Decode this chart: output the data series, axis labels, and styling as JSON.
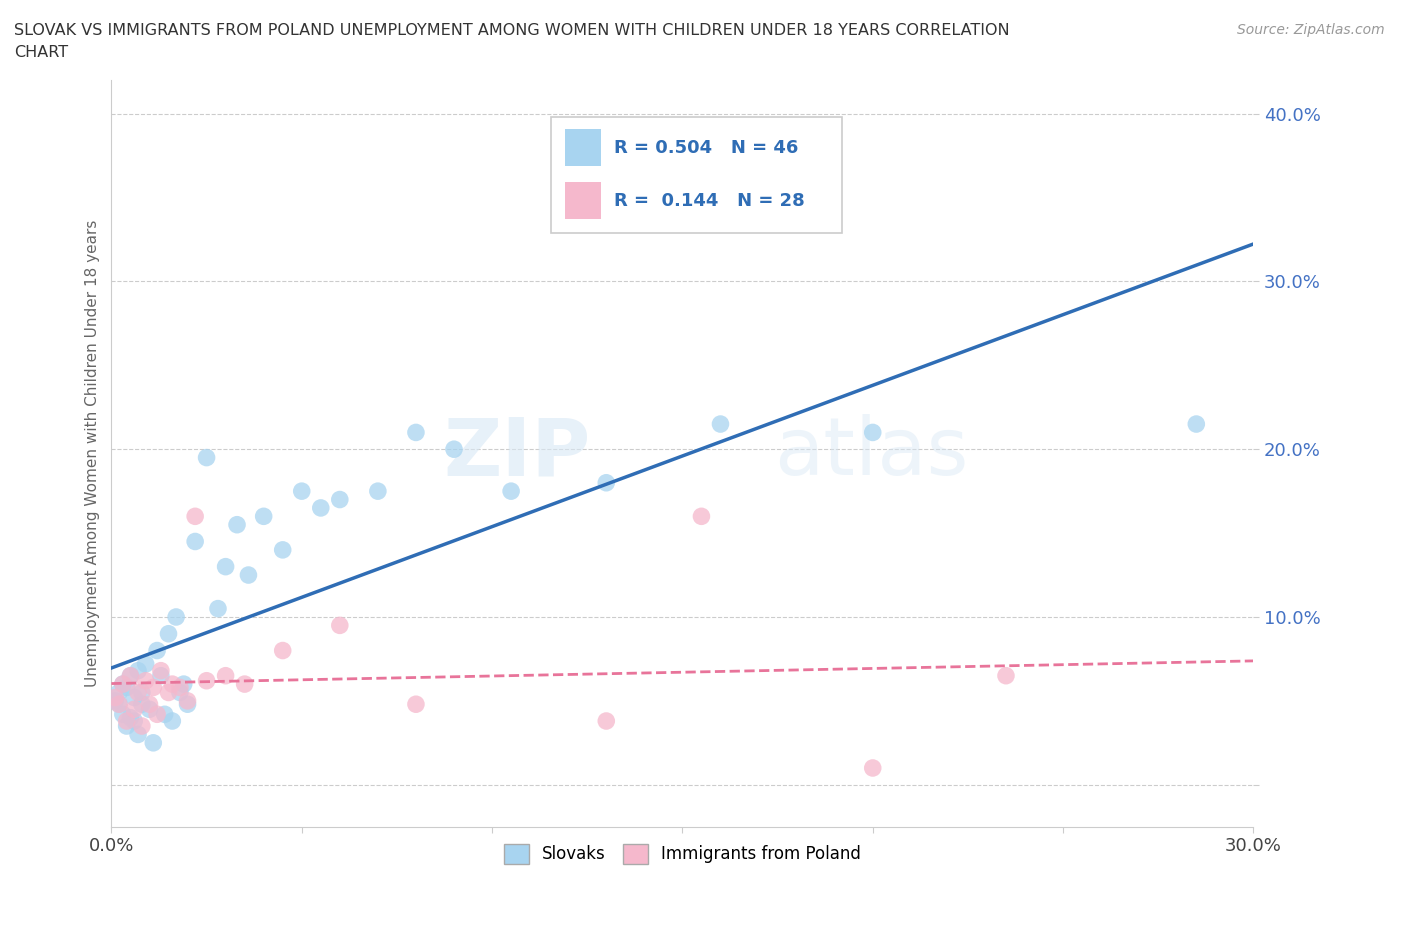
{
  "title_line1": "SLOVAK VS IMMIGRANTS FROM POLAND UNEMPLOYMENT AMONG WOMEN WITH CHILDREN UNDER 18 YEARS CORRELATION",
  "title_line2": "CHART",
  "source_text": "Source: ZipAtlas.com",
  "ylabel": "Unemployment Among Women with Children Under 18 years",
  "xlim": [
    0.0,
    0.3
  ],
  "ylim": [
    -0.025,
    0.42
  ],
  "xticks": [
    0.0,
    0.05,
    0.1,
    0.15,
    0.2,
    0.25,
    0.3
  ],
  "yticks": [
    0.0,
    0.1,
    0.2,
    0.3,
    0.4
  ],
  "slovak_R": 0.504,
  "slovak_N": 46,
  "poland_R": 0.144,
  "poland_N": 28,
  "slovak_color": "#A8D4F0",
  "poland_color": "#F5B8CC",
  "trend_slovak_color": "#2F6DB5",
  "trend_poland_color": "#E8749A",
  "slovak_x": [
    0.001,
    0.002,
    0.002,
    0.003,
    0.003,
    0.004,
    0.004,
    0.005,
    0.005,
    0.006,
    0.006,
    0.007,
    0.007,
    0.008,
    0.008,
    0.009,
    0.01,
    0.011,
    0.012,
    0.013,
    0.014,
    0.015,
    0.016,
    0.017,
    0.018,
    0.019,
    0.02,
    0.022,
    0.025,
    0.028,
    0.03,
    0.033,
    0.036,
    0.04,
    0.045,
    0.05,
    0.055,
    0.06,
    0.07,
    0.08,
    0.09,
    0.105,
    0.13,
    0.16,
    0.2,
    0.285
  ],
  "slovak_y": [
    0.05,
    0.055,
    0.048,
    0.06,
    0.042,
    0.058,
    0.035,
    0.065,
    0.04,
    0.052,
    0.038,
    0.068,
    0.03,
    0.055,
    0.048,
    0.072,
    0.045,
    0.025,
    0.08,
    0.065,
    0.042,
    0.09,
    0.038,
    0.1,
    0.055,
    0.06,
    0.048,
    0.145,
    0.195,
    0.105,
    0.13,
    0.155,
    0.125,
    0.16,
    0.14,
    0.175,
    0.165,
    0.17,
    0.175,
    0.21,
    0.2,
    0.175,
    0.18,
    0.215,
    0.21,
    0.215
  ],
  "poland_x": [
    0.001,
    0.002,
    0.003,
    0.004,
    0.005,
    0.006,
    0.007,
    0.008,
    0.009,
    0.01,
    0.011,
    0.012,
    0.013,
    0.015,
    0.016,
    0.018,
    0.02,
    0.022,
    0.025,
    0.03,
    0.035,
    0.045,
    0.06,
    0.08,
    0.13,
    0.155,
    0.2,
    0.235
  ],
  "poland_y": [
    0.052,
    0.048,
    0.06,
    0.038,
    0.065,
    0.045,
    0.055,
    0.035,
    0.062,
    0.048,
    0.058,
    0.042,
    0.068,
    0.055,
    0.06,
    0.058,
    0.05,
    0.16,
    0.062,
    0.065,
    0.06,
    0.08,
    0.095,
    0.048,
    0.038,
    0.16,
    0.01,
    0.065
  ]
}
